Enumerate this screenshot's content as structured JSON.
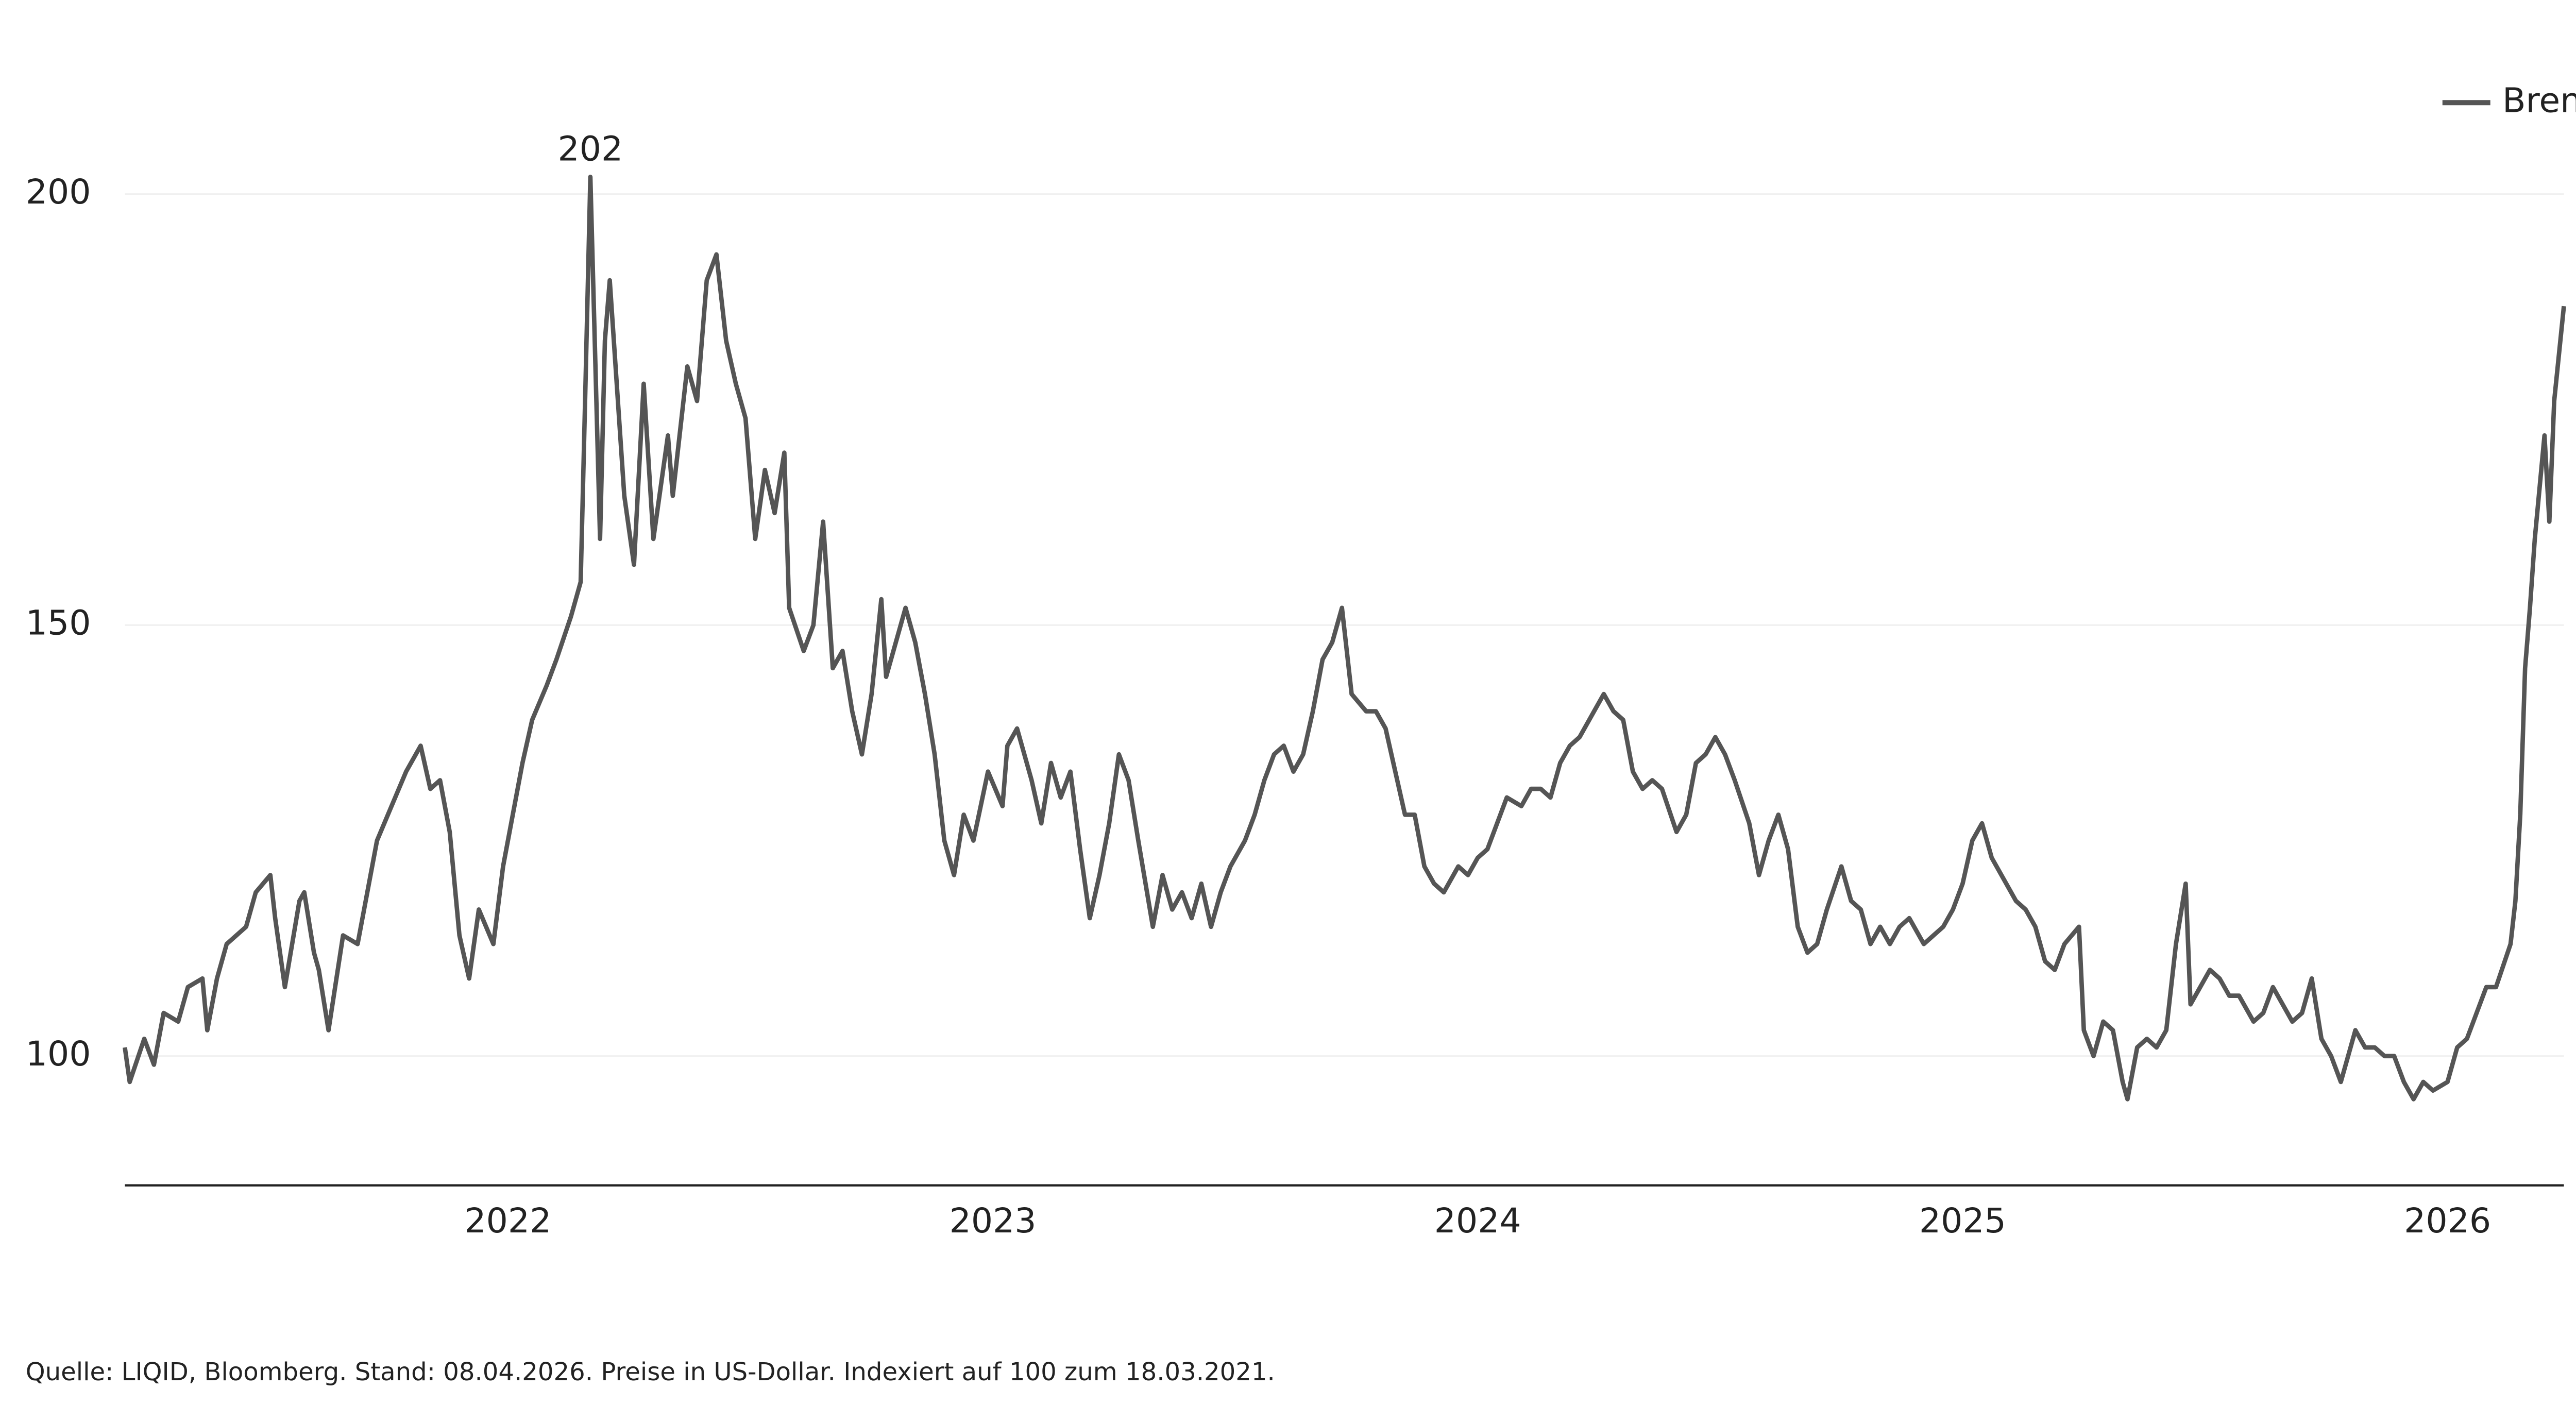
{
  "chart_data": {
    "type": "line",
    "series": [
      {
        "name": "Brent Öl",
        "color": "#555555",
        "x": [
          2021.21,
          2021.22,
          2021.25,
          2021.27,
          2021.29,
          2021.32,
          2021.34,
          2021.37,
          2021.38,
          2021.4,
          2021.42,
          2021.46,
          2021.48,
          2021.51,
          2021.52,
          2021.54,
          2021.57,
          2021.58,
          2021.6,
          2021.61,
          2021.63,
          2021.66,
          2021.69,
          2021.71,
          2021.73,
          2021.76,
          2021.79,
          2021.82,
          2021.84,
          2021.86,
          2021.88,
          2021.9,
          2021.92,
          2021.94,
          2021.97,
          2021.99,
          2022.01,
          2022.03,
          2022.05,
          2022.08,
          2022.1,
          2022.13,
          2022.15,
          2022.16,
          2022.17,
          2022.19,
          2022.2,
          2022.21,
          2022.24,
          2022.26,
          2022.28,
          2022.3,
          2022.33,
          2022.34,
          2022.37,
          2022.39,
          2022.41,
          2022.43,
          2022.45,
          2022.47,
          2022.49,
          2022.51,
          2022.53,
          2022.55,
          2022.57,
          2022.58,
          2022.61,
          2022.63,
          2022.65,
          2022.67,
          2022.69,
          2022.71,
          2022.73,
          2022.75,
          2022.77,
          2022.78,
          2022.8,
          2022.82,
          2022.84,
          2022.86,
          2022.88,
          2022.9,
          2022.92,
          2022.94,
          2022.96,
          2022.99,
          2023.02,
          2023.03,
          2023.05,
          2023.08,
          2023.1,
          2023.12,
          2023.14,
          2023.16,
          2023.18,
          2023.2,
          2023.22,
          2023.24,
          2023.26,
          2023.28,
          2023.3,
          2023.33,
          2023.35,
          2023.37,
          2023.39,
          2023.41,
          2023.43,
          2023.45,
          2023.47,
          2023.49,
          2023.52,
          2023.54,
          2023.56,
          2023.58,
          2023.6,
          2023.62,
          2023.64,
          2023.66,
          2023.68,
          2023.7,
          2023.72,
          2023.74,
          2023.77,
          2023.79,
          2023.81,
          2023.83,
          2023.85,
          2023.87,
          2023.89,
          2023.91,
          2023.93,
          2023.96,
          2023.98,
          2024.0,
          2024.02,
          2024.04,
          2024.06,
          2024.09,
          2024.11,
          2024.13,
          2024.15,
          2024.17,
          2024.19,
          2024.21,
          2024.24,
          2024.26,
          2024.28,
          2024.3,
          2024.32,
          2024.34,
          2024.36,
          2024.38,
          2024.41,
          2024.43,
          2024.45,
          2024.47,
          2024.49,
          2024.51,
          2024.53,
          2024.56,
          2024.58,
          2024.6,
          2024.62,
          2024.64,
          2024.66,
          2024.68,
          2024.7,
          2024.72,
          2024.75,
          2024.77,
          2024.79,
          2024.81,
          2024.83,
          2024.85,
          2024.87,
          2024.89,
          2024.92,
          2024.94,
          2024.96,
          2024.98,
          2025.0,
          2025.02,
          2025.04,
          2025.06,
          2025.09,
          2025.11,
          2025.13,
          2025.15,
          2025.17,
          2025.19,
          2025.21,
          2025.24,
          2025.25,
          2025.27,
          2025.29,
          2025.31,
          2025.33,
          2025.34,
          2025.36,
          2025.38,
          2025.4,
          2025.42,
          2025.44,
          2025.46,
          2025.47,
          2025.49,
          2025.51,
          2025.53,
          2025.55,
          2025.57,
          2025.6,
          2025.62,
          2025.64,
          2025.66,
          2025.68,
          2025.7,
          2025.72,
          2025.74,
          2025.76,
          2025.78,
          2025.81,
          2025.83,
          2025.85,
          2025.87,
          2025.89,
          2025.91,
          2025.93,
          2025.95,
          2025.97,
          2026.0,
          2026.02,
          2026.04,
          2026.06,
          2026.08,
          2026.1,
          2026.13,
          2026.14,
          2026.15,
          2026.16,
          2026.17,
          2026.18,
          2026.2,
          2026.21,
          2026.22,
          2026.24
        ],
        "values": [
          101,
          97,
          102,
          99,
          105,
          104,
          108,
          109,
          103,
          109,
          113,
          115,
          119,
          121,
          116,
          108,
          118,
          119,
          112,
          110,
          103,
          114,
          113,
          119,
          125,
          129,
          133,
          136,
          131,
          132,
          126,
          114,
          109,
          117,
          113,
          122,
          128,
          134,
          139,
          143,
          146,
          151,
          155,
          178,
          202,
          160,
          183,
          190,
          165,
          157,
          178,
          160,
          172,
          165,
          180,
          176,
          190,
          193,
          183,
          178,
          174,
          160,
          168,
          163,
          170,
          152,
          147,
          150,
          162,
          145,
          147,
          140,
          135,
          142,
          153,
          144,
          148,
          152,
          148,
          142,
          135,
          125,
          121,
          128,
          125,
          133,
          129,
          136,
          138,
          132,
          127,
          134,
          130,
          133,
          124,
          116,
          121,
          127,
          135,
          132,
          125,
          115,
          121,
          117,
          119,
          116,
          120,
          115,
          119,
          122,
          125,
          128,
          132,
          135,
          136,
          133,
          135,
          140,
          146,
          148,
          152,
          142,
          140,
          140,
          138,
          133,
          128,
          128,
          122,
          120,
          119,
          122,
          121,
          123,
          124,
          127,
          130,
          129,
          131,
          131,
          130,
          134,
          136,
          137,
          140,
          142,
          140,
          139,
          133,
          131,
          132,
          131,
          126,
          128,
          134,
          135,
          137,
          135,
          132,
          127,
          121,
          125,
          128,
          124,
          115,
          112,
          113,
          117,
          122,
          118,
          117,
          113,
          115,
          113,
          115,
          116,
          113,
          114,
          115,
          117,
          120,
          125,
          127,
          123,
          120,
          118,
          117,
          115,
          111,
          110,
          113,
          115,
          103,
          100,
          104,
          103,
          97,
          95,
          101,
          102,
          101,
          103,
          113,
          120,
          106,
          108,
          110,
          109,
          107,
          107,
          104,
          105,
          108,
          106,
          104,
          105,
          109,
          102,
          100,
          97,
          103,
          101,
          101,
          100,
          100,
          97,
          95,
          97,
          96,
          97,
          101,
          102,
          105,
          108,
          108,
          113,
          118,
          128,
          145,
          152,
          160,
          172,
          162,
          176,
          187
        ]
      }
    ],
    "annotations": [
      {
        "x": 2022.17,
        "value": 202
      },
      {
        "x": 2026.24,
        "value": 187
      }
    ],
    "xlim": [
      2021.21,
      2026.24
    ],
    "xticks": [
      2022,
      2023,
      2024,
      2025,
      2026
    ],
    "ylim": [
      85,
      212
    ],
    "yticks": [
      100,
      150,
      200
    ],
    "grid": true,
    "legend": "top-right",
    "source": "Quelle: LIQID, Bloomberg. Stand: 08.04.2026. Preise in US-Dollar. Indexiert auf 100 zum 18.03.2021."
  }
}
